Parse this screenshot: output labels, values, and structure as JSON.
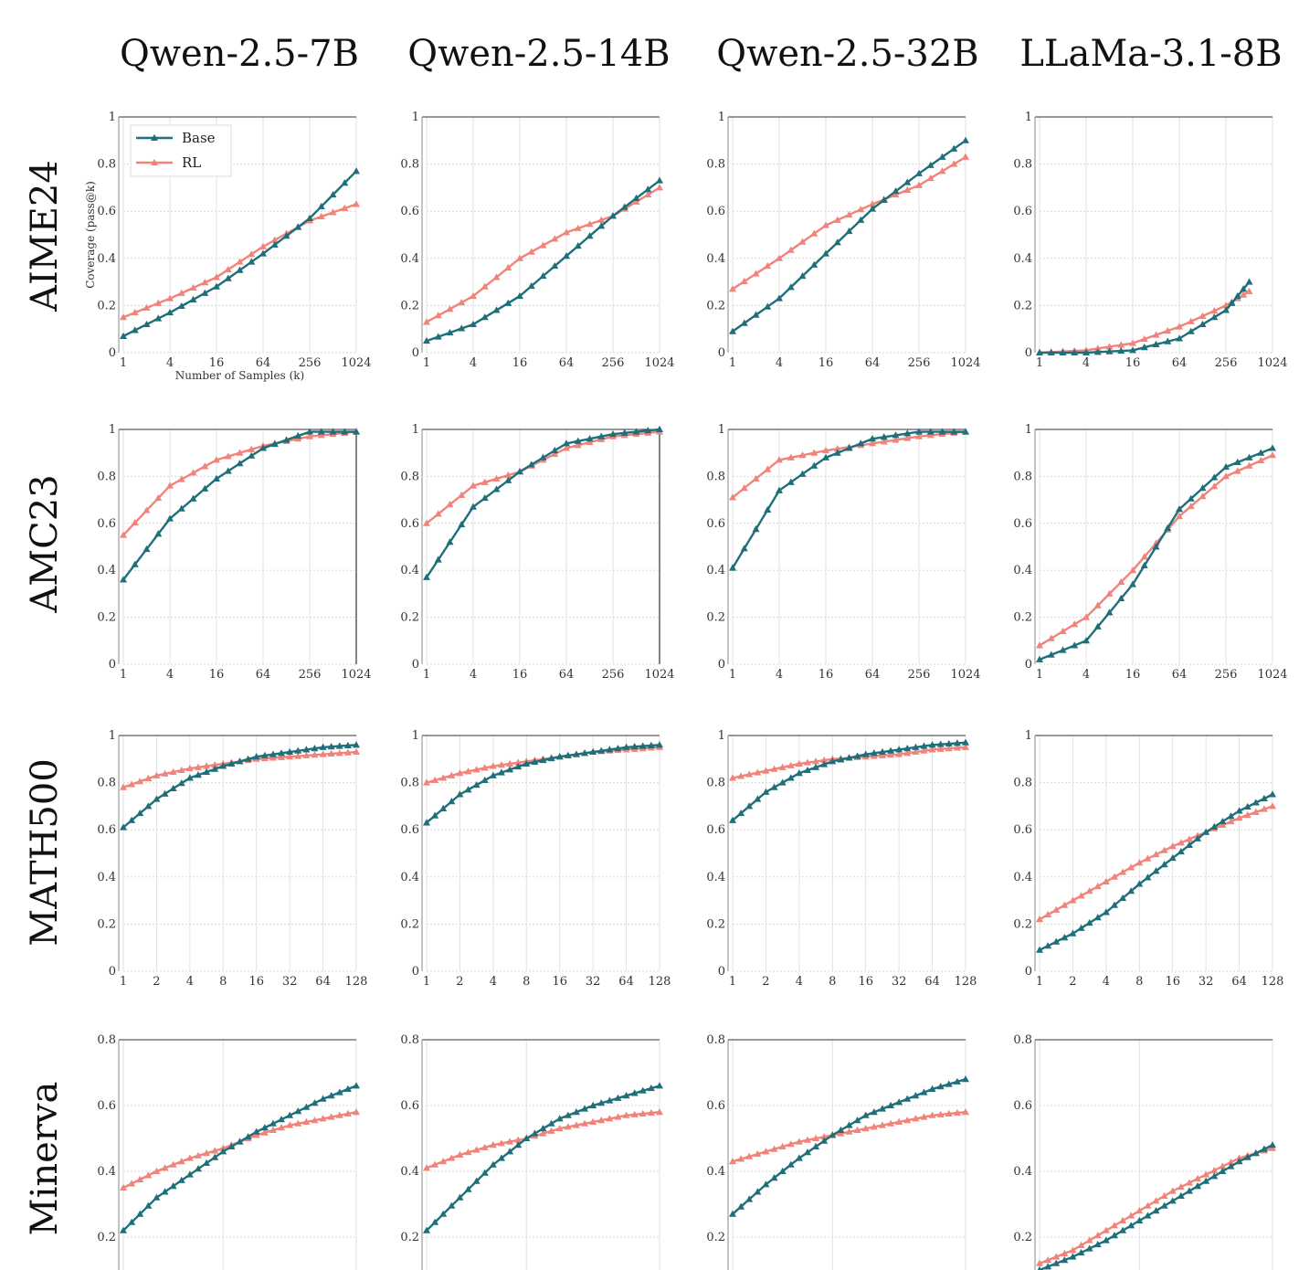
{
  "col_titles": [
    "Qwen-2.5-7B",
    "Qwen-2.5-14B",
    "Qwen-2.5-32B",
    "LLaMa-3.1-8B"
  ],
  "row_titles": [
    "AIME24",
    "AMC23",
    "MATH500",
    "Minerva"
  ],
  "colors": {
    "base": "#1f6f7a",
    "rl": "#f0837a"
  },
  "legend": [
    "Base",
    "RL"
  ],
  "chart_data": [
    {
      "type": "line",
      "row": "AIME24",
      "col": "Qwen-2.5-7B",
      "x": [
        1,
        4,
        16,
        64,
        256,
        1024
      ],
      "xticks": [
        "1",
        "4",
        "16",
        "64",
        "256",
        "1024"
      ],
      "xlabel": "Number of Samples (k)",
      "ylabel": "Coverage (pass@k)",
      "ylim": [
        0,
        1
      ],
      "yticks": [
        "0",
        "0.2",
        "0.4",
        "0.6",
        "0.8",
        "1"
      ],
      "series": [
        {
          "name": "Base",
          "values": [
            0.07,
            0.17,
            0.28,
            0.42,
            0.57,
            0.77
          ]
        },
        {
          "name": "RL",
          "values": [
            0.15,
            0.23,
            0.32,
            0.45,
            0.56,
            0.63
          ]
        }
      ]
    },
    {
      "type": "line",
      "row": "AIME24",
      "col": "Qwen-2.5-14B",
      "x": [
        1,
        4,
        16,
        64,
        256,
        1024
      ],
      "xticks": [
        "1",
        "4",
        "16",
        "64",
        "256",
        "1024"
      ],
      "ylim": [
        0,
        1
      ],
      "yticks": [
        "0",
        "0.2",
        "0.4",
        "0.6",
        "0.8",
        "1"
      ],
      "series": [
        {
          "name": "Base",
          "values": [
            0.05,
            0.12,
            0.24,
            0.41,
            0.58,
            0.73
          ]
        },
        {
          "name": "RL",
          "values": [
            0.13,
            0.24,
            0.4,
            0.51,
            0.58,
            0.7
          ]
        }
      ]
    },
    {
      "type": "line",
      "row": "AIME24",
      "col": "Qwen-2.5-32B",
      "x": [
        1,
        4,
        16,
        64,
        256,
        1024
      ],
      "xticks": [
        "1",
        "4",
        "16",
        "64",
        "256",
        "1024"
      ],
      "ylim": [
        0,
        1
      ],
      "yticks": [
        "0",
        "0.2",
        "0.4",
        "0.6",
        "0.8",
        "1"
      ],
      "series": [
        {
          "name": "Base",
          "values": [
            0.09,
            0.23,
            0.42,
            0.61,
            0.76,
            0.9
          ]
        },
        {
          "name": "RL",
          "values": [
            0.27,
            0.4,
            0.54,
            0.63,
            0.71,
            0.83
          ]
        }
      ]
    },
    {
      "type": "line",
      "row": "AIME24",
      "col": "LLaMa-3.1-8B",
      "x": [
        1,
        4,
        16,
        64,
        256,
        512
      ],
      "xticks": [
        "1",
        "4",
        "16",
        "64",
        "256",
        "1024"
      ],
      "ylim": [
        0,
        1
      ],
      "yticks": [
        "0",
        "0.2",
        "0.4",
        "0.6",
        "0.8",
        "1"
      ],
      "series": [
        {
          "name": "Base",
          "values": [
            0.0,
            0.0,
            0.01,
            0.06,
            0.18,
            0.3
          ]
        },
        {
          "name": "RL",
          "values": [
            0.0,
            0.01,
            0.04,
            0.11,
            0.2,
            0.26
          ]
        }
      ]
    },
    {
      "type": "line",
      "row": "AMC23",
      "col": "Qwen-2.5-7B",
      "x": [
        1,
        4,
        16,
        64,
        256,
        1024
      ],
      "xticks": [
        "1",
        "4",
        "16",
        "64",
        "256",
        "1024"
      ],
      "ylim": [
        0,
        1
      ],
      "yticks": [
        "0",
        "0.2",
        "0.4",
        "0.6",
        "0.8",
        "1"
      ],
      "series": [
        {
          "name": "Base",
          "values": [
            0.36,
            0.62,
            0.79,
            0.92,
            0.99,
            0.99
          ]
        },
        {
          "name": "RL",
          "values": [
            0.55,
            0.76,
            0.87,
            0.93,
            0.97,
            0.99
          ]
        }
      ]
    },
    {
      "type": "line",
      "row": "AMC23",
      "col": "Qwen-2.5-14B",
      "x": [
        1,
        4,
        16,
        64,
        256,
        1024
      ],
      "xticks": [
        "1",
        "4",
        "16",
        "64",
        "256",
        "1024"
      ],
      "ylim": [
        0,
        1
      ],
      "yticks": [
        "0",
        "0.2",
        "0.4",
        "0.6",
        "0.8",
        "1"
      ],
      "series": [
        {
          "name": "Base",
          "values": [
            0.37,
            0.67,
            0.82,
            0.94,
            0.98,
            1.0
          ]
        },
        {
          "name": "RL",
          "values": [
            0.6,
            0.76,
            0.82,
            0.92,
            0.97,
            0.99
          ]
        }
      ]
    },
    {
      "type": "line",
      "row": "AMC23",
      "col": "Qwen-2.5-32B",
      "x": [
        1,
        4,
        16,
        64,
        256,
        1024
      ],
      "xticks": [
        "1",
        "4",
        "16",
        "64",
        "256",
        "1024"
      ],
      "ylim": [
        0,
        1
      ],
      "yticks": [
        "0",
        "0.2",
        "0.4",
        "0.6",
        "0.8",
        "1"
      ],
      "series": [
        {
          "name": "Base",
          "values": [
            0.41,
            0.74,
            0.88,
            0.96,
            0.99,
            0.99
          ]
        },
        {
          "name": "RL",
          "values": [
            0.71,
            0.87,
            0.91,
            0.94,
            0.97,
            0.99
          ]
        }
      ]
    },
    {
      "type": "line",
      "row": "AMC23",
      "col": "LLaMa-3.1-8B",
      "x": [
        1,
        4,
        16,
        64,
        256,
        1024
      ],
      "xticks": [
        "1",
        "4",
        "16",
        "64",
        "256",
        "1024"
      ],
      "ylim": [
        0,
        1
      ],
      "yticks": [
        "0",
        "0.2",
        "0.4",
        "0.6",
        "0.8",
        "1"
      ],
      "series": [
        {
          "name": "Base",
          "values": [
            0.02,
            0.1,
            0.34,
            0.66,
            0.84,
            0.92
          ]
        },
        {
          "name": "RL",
          "values": [
            0.08,
            0.2,
            0.4,
            0.63,
            0.8,
            0.89
          ]
        }
      ]
    },
    {
      "type": "line",
      "row": "MATH500",
      "col": "Qwen-2.5-7B",
      "x": [
        1,
        2,
        4,
        8,
        16,
        32,
        64,
        128
      ],
      "xticks": [
        "1",
        "2",
        "4",
        "8",
        "16",
        "32",
        "64",
        "128"
      ],
      "ylim": [
        0,
        1
      ],
      "yticks": [
        "0",
        "0.2",
        "0.4",
        "0.6",
        "0.8",
        "1"
      ],
      "series": [
        {
          "name": "Base",
          "values": [
            0.61,
            0.73,
            0.82,
            0.87,
            0.91,
            0.93,
            0.95,
            0.96
          ]
        },
        {
          "name": "RL",
          "values": [
            0.78,
            0.83,
            0.86,
            0.88,
            0.9,
            0.91,
            0.92,
            0.93
          ]
        }
      ]
    },
    {
      "type": "line",
      "row": "MATH500",
      "col": "Qwen-2.5-14B",
      "x": [
        1,
        2,
        4,
        8,
        16,
        32,
        64,
        128
      ],
      "xticks": [
        "1",
        "2",
        "4",
        "8",
        "16",
        "32",
        "64",
        "128"
      ],
      "ylim": [
        0,
        1
      ],
      "yticks": [
        "0",
        "0.2",
        "0.4",
        "0.6",
        "0.8",
        "1"
      ],
      "series": [
        {
          "name": "Base",
          "values": [
            0.63,
            0.75,
            0.83,
            0.88,
            0.91,
            0.93,
            0.95,
            0.96
          ]
        },
        {
          "name": "RL",
          "values": [
            0.8,
            0.84,
            0.87,
            0.89,
            0.91,
            0.93,
            0.94,
            0.95
          ]
        }
      ]
    },
    {
      "type": "line",
      "row": "MATH500",
      "col": "Qwen-2.5-32B",
      "x": [
        1,
        2,
        4,
        8,
        16,
        32,
        64,
        128
      ],
      "xticks": [
        "1",
        "2",
        "4",
        "8",
        "16",
        "32",
        "64",
        "128"
      ],
      "ylim": [
        0,
        1
      ],
      "yticks": [
        "0",
        "0.2",
        "0.4",
        "0.6",
        "0.8",
        "1"
      ],
      "series": [
        {
          "name": "Base",
          "values": [
            0.64,
            0.76,
            0.84,
            0.89,
            0.92,
            0.94,
            0.96,
            0.97
          ]
        },
        {
          "name": "RL",
          "values": [
            0.82,
            0.85,
            0.88,
            0.9,
            0.91,
            0.92,
            0.94,
            0.95
          ]
        }
      ]
    },
    {
      "type": "line",
      "row": "MATH500",
      "col": "LLaMa-3.1-8B",
      "x": [
        1,
        2,
        4,
        8,
        16,
        32,
        64,
        128
      ],
      "xticks": [
        "1",
        "2",
        "4",
        "8",
        "16",
        "32",
        "64",
        "128"
      ],
      "ylim": [
        0,
        1
      ],
      "yticks": [
        "0",
        "0.2",
        "0.4",
        "0.6",
        "0.8",
        "1"
      ],
      "series": [
        {
          "name": "Base",
          "values": [
            0.09,
            0.16,
            0.25,
            0.37,
            0.48,
            0.59,
            0.68,
            0.75
          ]
        },
        {
          "name": "RL",
          "values": [
            0.22,
            0.3,
            0.38,
            0.46,
            0.53,
            0.59,
            0.65,
            0.7
          ]
        }
      ]
    },
    {
      "type": "line",
      "row": "Minerva",
      "col": "Qwen-2.5-7B",
      "x": [
        1,
        2,
        4,
        8,
        16,
        32,
        64,
        128
      ],
      "xticks": [],
      "ylim": [
        0.1,
        0.8
      ],
      "yticks": [
        "0.2",
        "0.4",
        "0.6",
        "0.8"
      ],
      "series": [
        {
          "name": "Base",
          "values": [
            0.22,
            0.32,
            0.39,
            0.46,
            0.52,
            0.57,
            0.62,
            0.66
          ]
        },
        {
          "name": "RL",
          "values": [
            0.35,
            0.4,
            0.44,
            0.47,
            0.51,
            0.54,
            0.56,
            0.58
          ]
        }
      ]
    },
    {
      "type": "line",
      "row": "Minerva",
      "col": "Qwen-2.5-14B",
      "x": [
        1,
        2,
        4,
        8,
        16,
        32,
        64,
        128
      ],
      "xticks": [],
      "ylim": [
        0.1,
        0.8
      ],
      "yticks": [
        "0.2",
        "0.4",
        "0.6",
        "0.8"
      ],
      "series": [
        {
          "name": "Base",
          "values": [
            0.22,
            0.32,
            0.42,
            0.5,
            0.56,
            0.6,
            0.63,
            0.66
          ]
        },
        {
          "name": "RL",
          "values": [
            0.41,
            0.45,
            0.48,
            0.5,
            0.53,
            0.55,
            0.57,
            0.58
          ]
        }
      ]
    },
    {
      "type": "line",
      "row": "Minerva",
      "col": "Qwen-2.5-32B",
      "x": [
        1,
        2,
        4,
        8,
        16,
        32,
        64,
        128
      ],
      "xticks": [],
      "ylim": [
        0.1,
        0.8
      ],
      "yticks": [
        "0.2",
        "0.4",
        "0.6",
        "0.8"
      ],
      "series": [
        {
          "name": "Base",
          "values": [
            0.27,
            0.36,
            0.44,
            0.51,
            0.57,
            0.61,
            0.65,
            0.68
          ]
        },
        {
          "name": "RL",
          "values": [
            0.43,
            0.46,
            0.49,
            0.51,
            0.53,
            0.55,
            0.57,
            0.58
          ]
        }
      ]
    },
    {
      "type": "line",
      "row": "Minerva",
      "col": "LLaMa-3.1-8B",
      "x": [
        1,
        2,
        4,
        8,
        16,
        32,
        64,
        128
      ],
      "xticks": [],
      "ylim": [
        0.1,
        0.8
      ],
      "yticks": [
        "0.2",
        "0.4",
        "0.6",
        "0.8"
      ],
      "series": [
        {
          "name": "Base",
          "values": [
            0.1,
            0.14,
            0.19,
            0.25,
            0.31,
            0.37,
            0.43,
            0.48
          ]
        },
        {
          "name": "RL",
          "values": [
            0.12,
            0.16,
            0.22,
            0.28,
            0.34,
            0.39,
            0.44,
            0.47
          ]
        }
      ]
    }
  ]
}
